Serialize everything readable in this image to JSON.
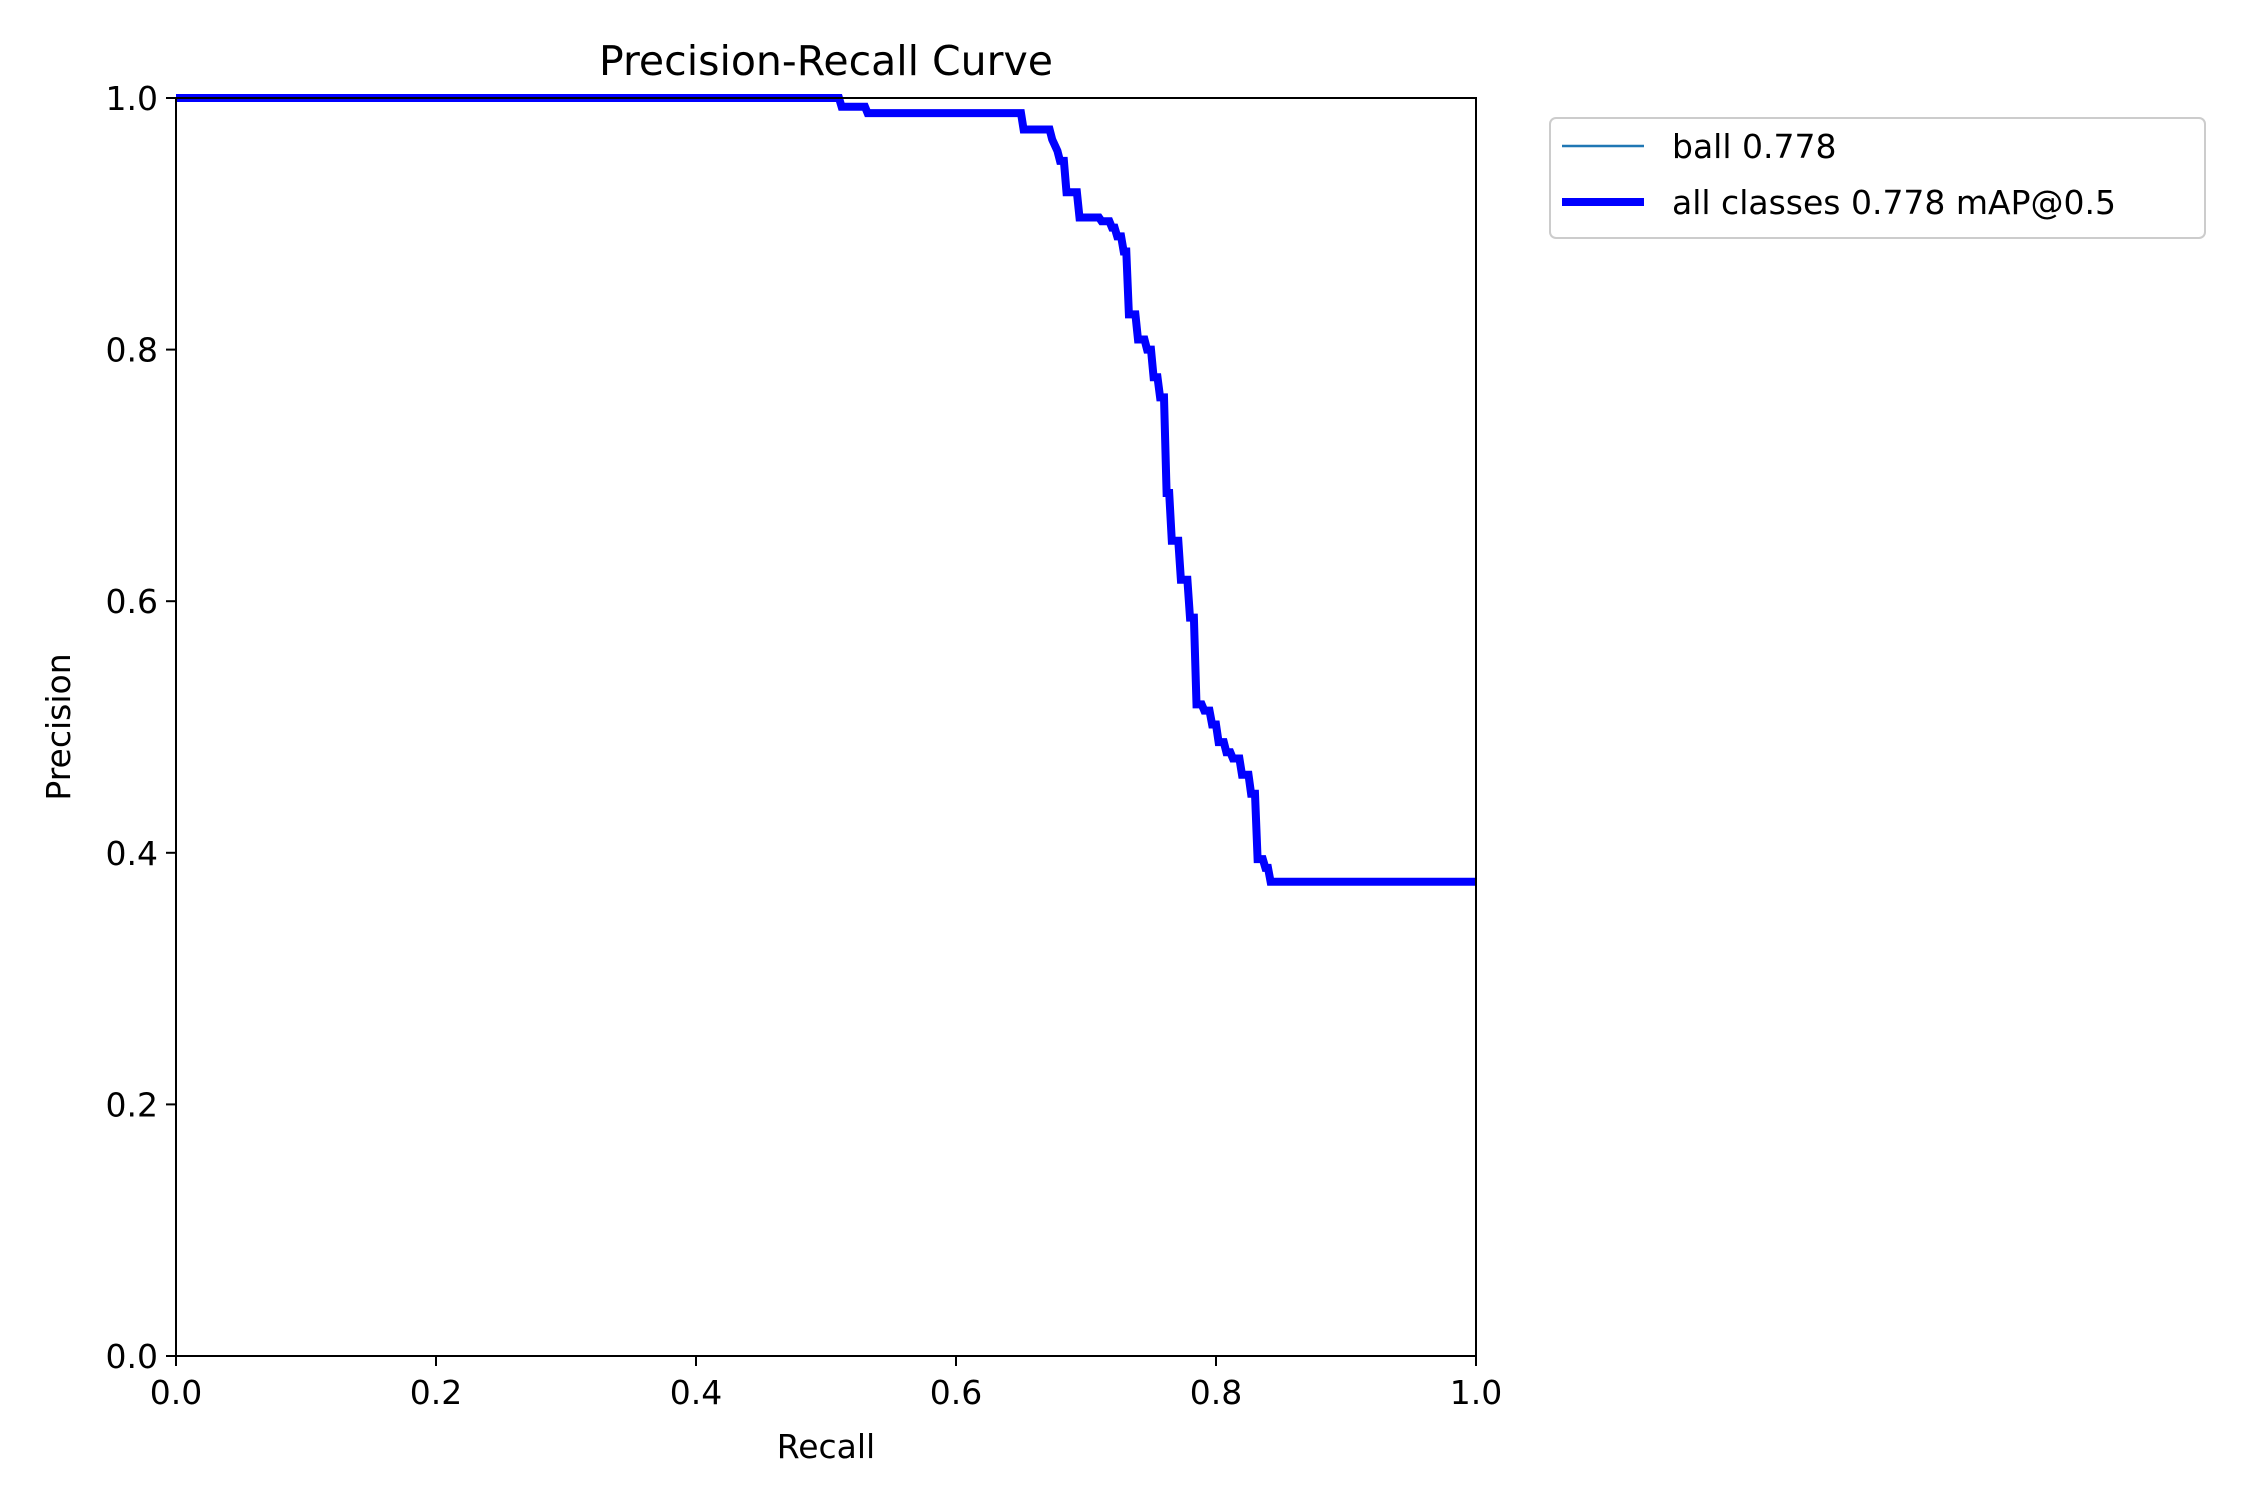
{
  "chart_data": {
    "type": "line",
    "title": "Precision-Recall Curve",
    "xlabel": "Recall",
    "ylabel": "Precision",
    "xlim": [
      0.0,
      1.0
    ],
    "ylim": [
      0.0,
      1.0
    ],
    "xticks": [
      "0.0",
      "0.2",
      "0.4",
      "0.6",
      "0.8",
      "1.0"
    ],
    "yticks": [
      "0.0",
      "0.2",
      "0.4",
      "0.6",
      "0.8",
      "1.0"
    ],
    "grid": false,
    "legend_position": "outside-top-right",
    "series": [
      {
        "name": "ball 0.778",
        "color": "#1f77b4",
        "style": "thin",
        "x": [
          0.0,
          0.51,
          0.512,
          0.53,
          0.532,
          0.65,
          0.652,
          0.672,
          0.674,
          0.678,
          0.68,
          0.683,
          0.685,
          0.693,
          0.695,
          0.71,
          0.712,
          0.718,
          0.72,
          0.722,
          0.724,
          0.727,
          0.729,
          0.731,
          0.733,
          0.738,
          0.74,
          0.745,
          0.747,
          0.75,
          0.752,
          0.755,
          0.757,
          0.76,
          0.762,
          0.764,
          0.766,
          0.771,
          0.773,
          0.778,
          0.78,
          0.783,
          0.785,
          0.789,
          0.791,
          0.795,
          0.797,
          0.8,
          0.802,
          0.806,
          0.808,
          0.811,
          0.813,
          0.818,
          0.82,
          0.825,
          0.827,
          0.83,
          0.832,
          0.836,
          0.838,
          0.84,
          0.842,
          1.0
        ],
        "y": [
          1.0,
          1.0,
          0.993,
          0.993,
          0.988,
          0.988,
          0.975,
          0.975,
          0.967,
          0.958,
          0.95,
          0.95,
          0.925,
          0.925,
          0.905,
          0.905,
          0.902,
          0.902,
          0.897,
          0.897,
          0.89,
          0.89,
          0.878,
          0.878,
          0.828,
          0.828,
          0.808,
          0.808,
          0.8,
          0.8,
          0.778,
          0.778,
          0.762,
          0.762,
          0.686,
          0.686,
          0.648,
          0.648,
          0.617,
          0.617,
          0.587,
          0.587,
          0.518,
          0.518,
          0.513,
          0.513,
          0.502,
          0.502,
          0.488,
          0.488,
          0.48,
          0.48,
          0.475,
          0.475,
          0.462,
          0.462,
          0.447,
          0.447,
          0.395,
          0.395,
          0.388,
          0.388,
          0.377,
          0.377
        ]
      },
      {
        "name": "all classes 0.778 mAP@0.5",
        "color": "#0000ff",
        "style": "thick",
        "x": [
          0.0,
          0.51,
          0.512,
          0.53,
          0.532,
          0.65,
          0.652,
          0.672,
          0.674,
          0.678,
          0.68,
          0.683,
          0.685,
          0.693,
          0.695,
          0.71,
          0.712,
          0.718,
          0.72,
          0.722,
          0.724,
          0.727,
          0.729,
          0.731,
          0.733,
          0.738,
          0.74,
          0.745,
          0.747,
          0.75,
          0.752,
          0.755,
          0.757,
          0.76,
          0.762,
          0.764,
          0.766,
          0.771,
          0.773,
          0.778,
          0.78,
          0.783,
          0.785,
          0.789,
          0.791,
          0.795,
          0.797,
          0.8,
          0.802,
          0.806,
          0.808,
          0.811,
          0.813,
          0.818,
          0.82,
          0.825,
          0.827,
          0.83,
          0.832,
          0.836,
          0.838,
          0.84,
          0.842,
          1.0
        ],
        "y": [
          1.0,
          1.0,
          0.993,
          0.993,
          0.988,
          0.988,
          0.975,
          0.975,
          0.967,
          0.958,
          0.95,
          0.95,
          0.925,
          0.925,
          0.905,
          0.905,
          0.902,
          0.902,
          0.897,
          0.897,
          0.89,
          0.89,
          0.878,
          0.878,
          0.828,
          0.828,
          0.808,
          0.808,
          0.8,
          0.8,
          0.778,
          0.778,
          0.762,
          0.762,
          0.686,
          0.686,
          0.648,
          0.648,
          0.617,
          0.617,
          0.587,
          0.587,
          0.518,
          0.518,
          0.513,
          0.513,
          0.502,
          0.502,
          0.488,
          0.488,
          0.48,
          0.48,
          0.475,
          0.475,
          0.462,
          0.462,
          0.447,
          0.447,
          0.395,
          0.395,
          0.388,
          0.388,
          0.377,
          0.377
        ]
      }
    ]
  }
}
